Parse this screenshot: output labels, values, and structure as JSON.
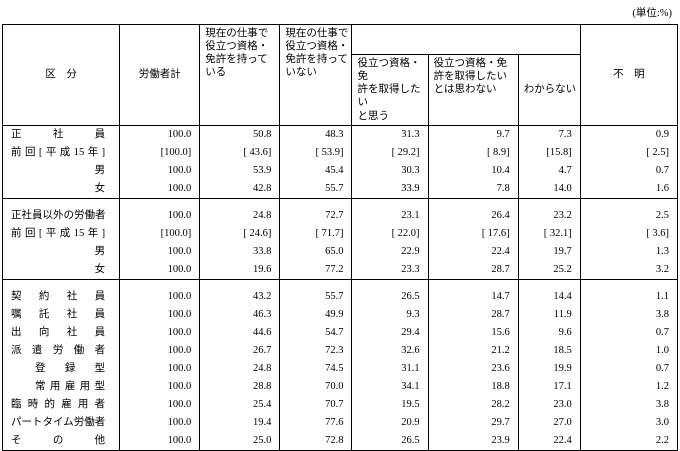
{
  "unit_label": "(単位:%)",
  "table": {
    "headers": {
      "category": "区　分",
      "total": "労働者計",
      "has_license": "現在の仕事で\n役立つ資格・\n免許を持って\nいる",
      "no_license": "現在の仕事で\n役立つ資格・\n免許を持って\nいない",
      "no_license_group": "",
      "sub_want": "役立つ資格・免\n許を取得したい\nと思う",
      "sub_not_want": "役立つ資格・免\n許を取得したい\nとは思わない",
      "sub_dont_know": "わからない",
      "unknown": "不　明"
    },
    "groups": [
      {
        "rows": [
          {
            "label": "正社員",
            "style": "justify",
            "values": [
              "100.0",
              "50.8",
              "48.3",
              "31.3",
              "9.7",
              "7.3",
              "0.9"
            ]
          },
          {
            "label": "前回[平成15年]",
            "style": "justify",
            "values": [
              "[100.0]",
              "[ 43.6]",
              "[ 53.9]",
              "[ 29.2]",
              "[ 8.9]",
              "[15.8]",
              "[ 2.5]"
            ]
          },
          {
            "label": "男",
            "style": "right",
            "values": [
              "100.0",
              "53.9",
              "45.4",
              "30.3",
              "10.4",
              "4.7",
              "0.7"
            ]
          },
          {
            "label": "女",
            "style": "right",
            "values": [
              "100.0",
              "42.8",
              "55.7",
              "33.9",
              "7.8",
              "14.0",
              "1.6"
            ]
          }
        ]
      },
      {
        "rows": [
          {
            "label": "正社員以外の労働者",
            "style": "justify",
            "values": [
              "100.0",
              "24.8",
              "72.7",
              "23.1",
              "26.4",
              "23.2",
              "2.5"
            ]
          },
          {
            "label": "前回[平成15年]",
            "style": "justify",
            "values": [
              "[100.0]",
              "[ 24.6]",
              "[ 71.7]",
              "[ 22.0]",
              "[ 17.6]",
              "[ 32.1]",
              "[ 3.6]"
            ]
          },
          {
            "label": "男",
            "style": "right",
            "values": [
              "100.0",
              "33.8",
              "65.0",
              "22.9",
              "22.4",
              "19.7",
              "1.3"
            ]
          },
          {
            "label": "女",
            "style": "right",
            "values": [
              "100.0",
              "19.6",
              "77.2",
              "23.3",
              "28.7",
              "25.2",
              "3.2"
            ]
          }
        ]
      },
      {
        "rows": [
          {
            "label": "契約社員",
            "style": "justify",
            "values": [
              "100.0",
              "43.2",
              "55.7",
              "26.5",
              "14.7",
              "14.4",
              "1.1"
            ]
          },
          {
            "label": "嘱託社員",
            "style": "justify",
            "values": [
              "100.0",
              "46.3",
              "49.9",
              "9.3",
              "28.7",
              "11.9",
              "3.8"
            ]
          },
          {
            "label": "出向社員",
            "style": "justify",
            "values": [
              "100.0",
              "44.6",
              "54.7",
              "29.4",
              "15.6",
              "9.6",
              "0.7"
            ]
          },
          {
            "label": "派遣労働者",
            "style": "justify",
            "values": [
              "100.0",
              "26.7",
              "72.3",
              "32.6",
              "21.2",
              "18.5",
              "1.0"
            ]
          },
          {
            "label": "登録型",
            "style": "indent",
            "values": [
              "100.0",
              "24.8",
              "74.5",
              "31.1",
              "23.6",
              "19.9",
              "0.7"
            ]
          },
          {
            "label": "常用雇用型",
            "style": "indent",
            "values": [
              "100.0",
              "28.8",
              "70.0",
              "34.1",
              "18.8",
              "17.1",
              "1.2"
            ]
          },
          {
            "label": "臨時的雇用者",
            "style": "justify",
            "values": [
              "100.0",
              "25.4",
              "70.7",
              "19.5",
              "28.2",
              "23.0",
              "3.8"
            ]
          },
          {
            "label": "パートタイム労働者",
            "style": "justify",
            "values": [
              "100.0",
              "19.4",
              "77.6",
              "20.9",
              "29.7",
              "27.0",
              "3.0"
            ]
          },
          {
            "label": "その他",
            "style": "justify",
            "values": [
              "100.0",
              "25.0",
              "72.8",
              "26.5",
              "23.9",
              "22.4",
              "2.2"
            ]
          }
        ]
      }
    ]
  }
}
